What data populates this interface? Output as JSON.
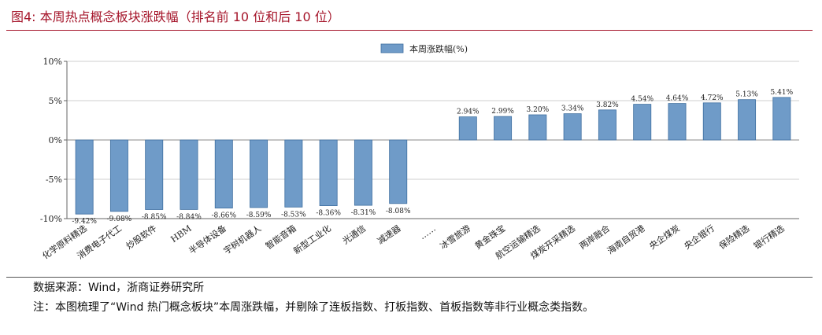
{
  "figure": {
    "title": "图4:  本周热点概念板块涨跌幅（排名前 10 位和后 10 位）",
    "source": "数据来源：Wind，浙商证券研究所",
    "note": "注：本图梳理了“Wind 热门概念板块”本周涨跌幅，并剔除了连板指数、打板指数、首板指数等非行业概念类指数。"
  },
  "chart_data": {
    "type": "bar",
    "title": "",
    "xlabel": "",
    "ylabel": "",
    "ylim": [
      -10,
      10
    ],
    "y_ticks": [
      10,
      5,
      0,
      -5,
      -10
    ],
    "y_tick_labels": [
      "10%",
      "5%",
      "0%",
      "-5%",
      "-10%"
    ],
    "grid": true,
    "legend": {
      "position": "top-center",
      "label": "本周涨跌幅(%)"
    },
    "categories": [
      "化学原料精选",
      "消费电子代工",
      "炒股软件",
      "HBM",
      "半导体设备",
      "宇树机器人",
      "智能音箱",
      "新型工业化",
      "光通信",
      "减速器",
      "……",
      "冰雪旅游",
      "黄金珠宝",
      "航空运输精选",
      "煤炭开采精选",
      "两岸融合",
      "海南自贸港",
      "央企煤炭",
      "央企银行",
      "保险精选",
      "银行精选"
    ],
    "series": [
      {
        "name": "本周涨跌幅(%)",
        "color": "#6f9bc8",
        "values": [
          -9.42,
          -9.08,
          -8.85,
          -8.84,
          -8.66,
          -8.59,
          -8.53,
          -8.36,
          -8.31,
          -8.08,
          null,
          2.94,
          2.99,
          3.2,
          3.34,
          3.82,
          4.54,
          4.64,
          4.72,
          5.13,
          5.41
        ],
        "data_labels": [
          "-9.42%",
          "-9.08%",
          "-8.85%",
          "-8.84%",
          "-8.66%",
          "-8.59%",
          "-8.53%",
          "-8.36%",
          "-8.31%",
          "-8.08%",
          "",
          "2.94%",
          "2.99%",
          "3.20%",
          "3.34%",
          "3.82%",
          "4.54%",
          "4.64%",
          "4.72%",
          "5.13%",
          "5.41%"
        ]
      }
    ]
  }
}
